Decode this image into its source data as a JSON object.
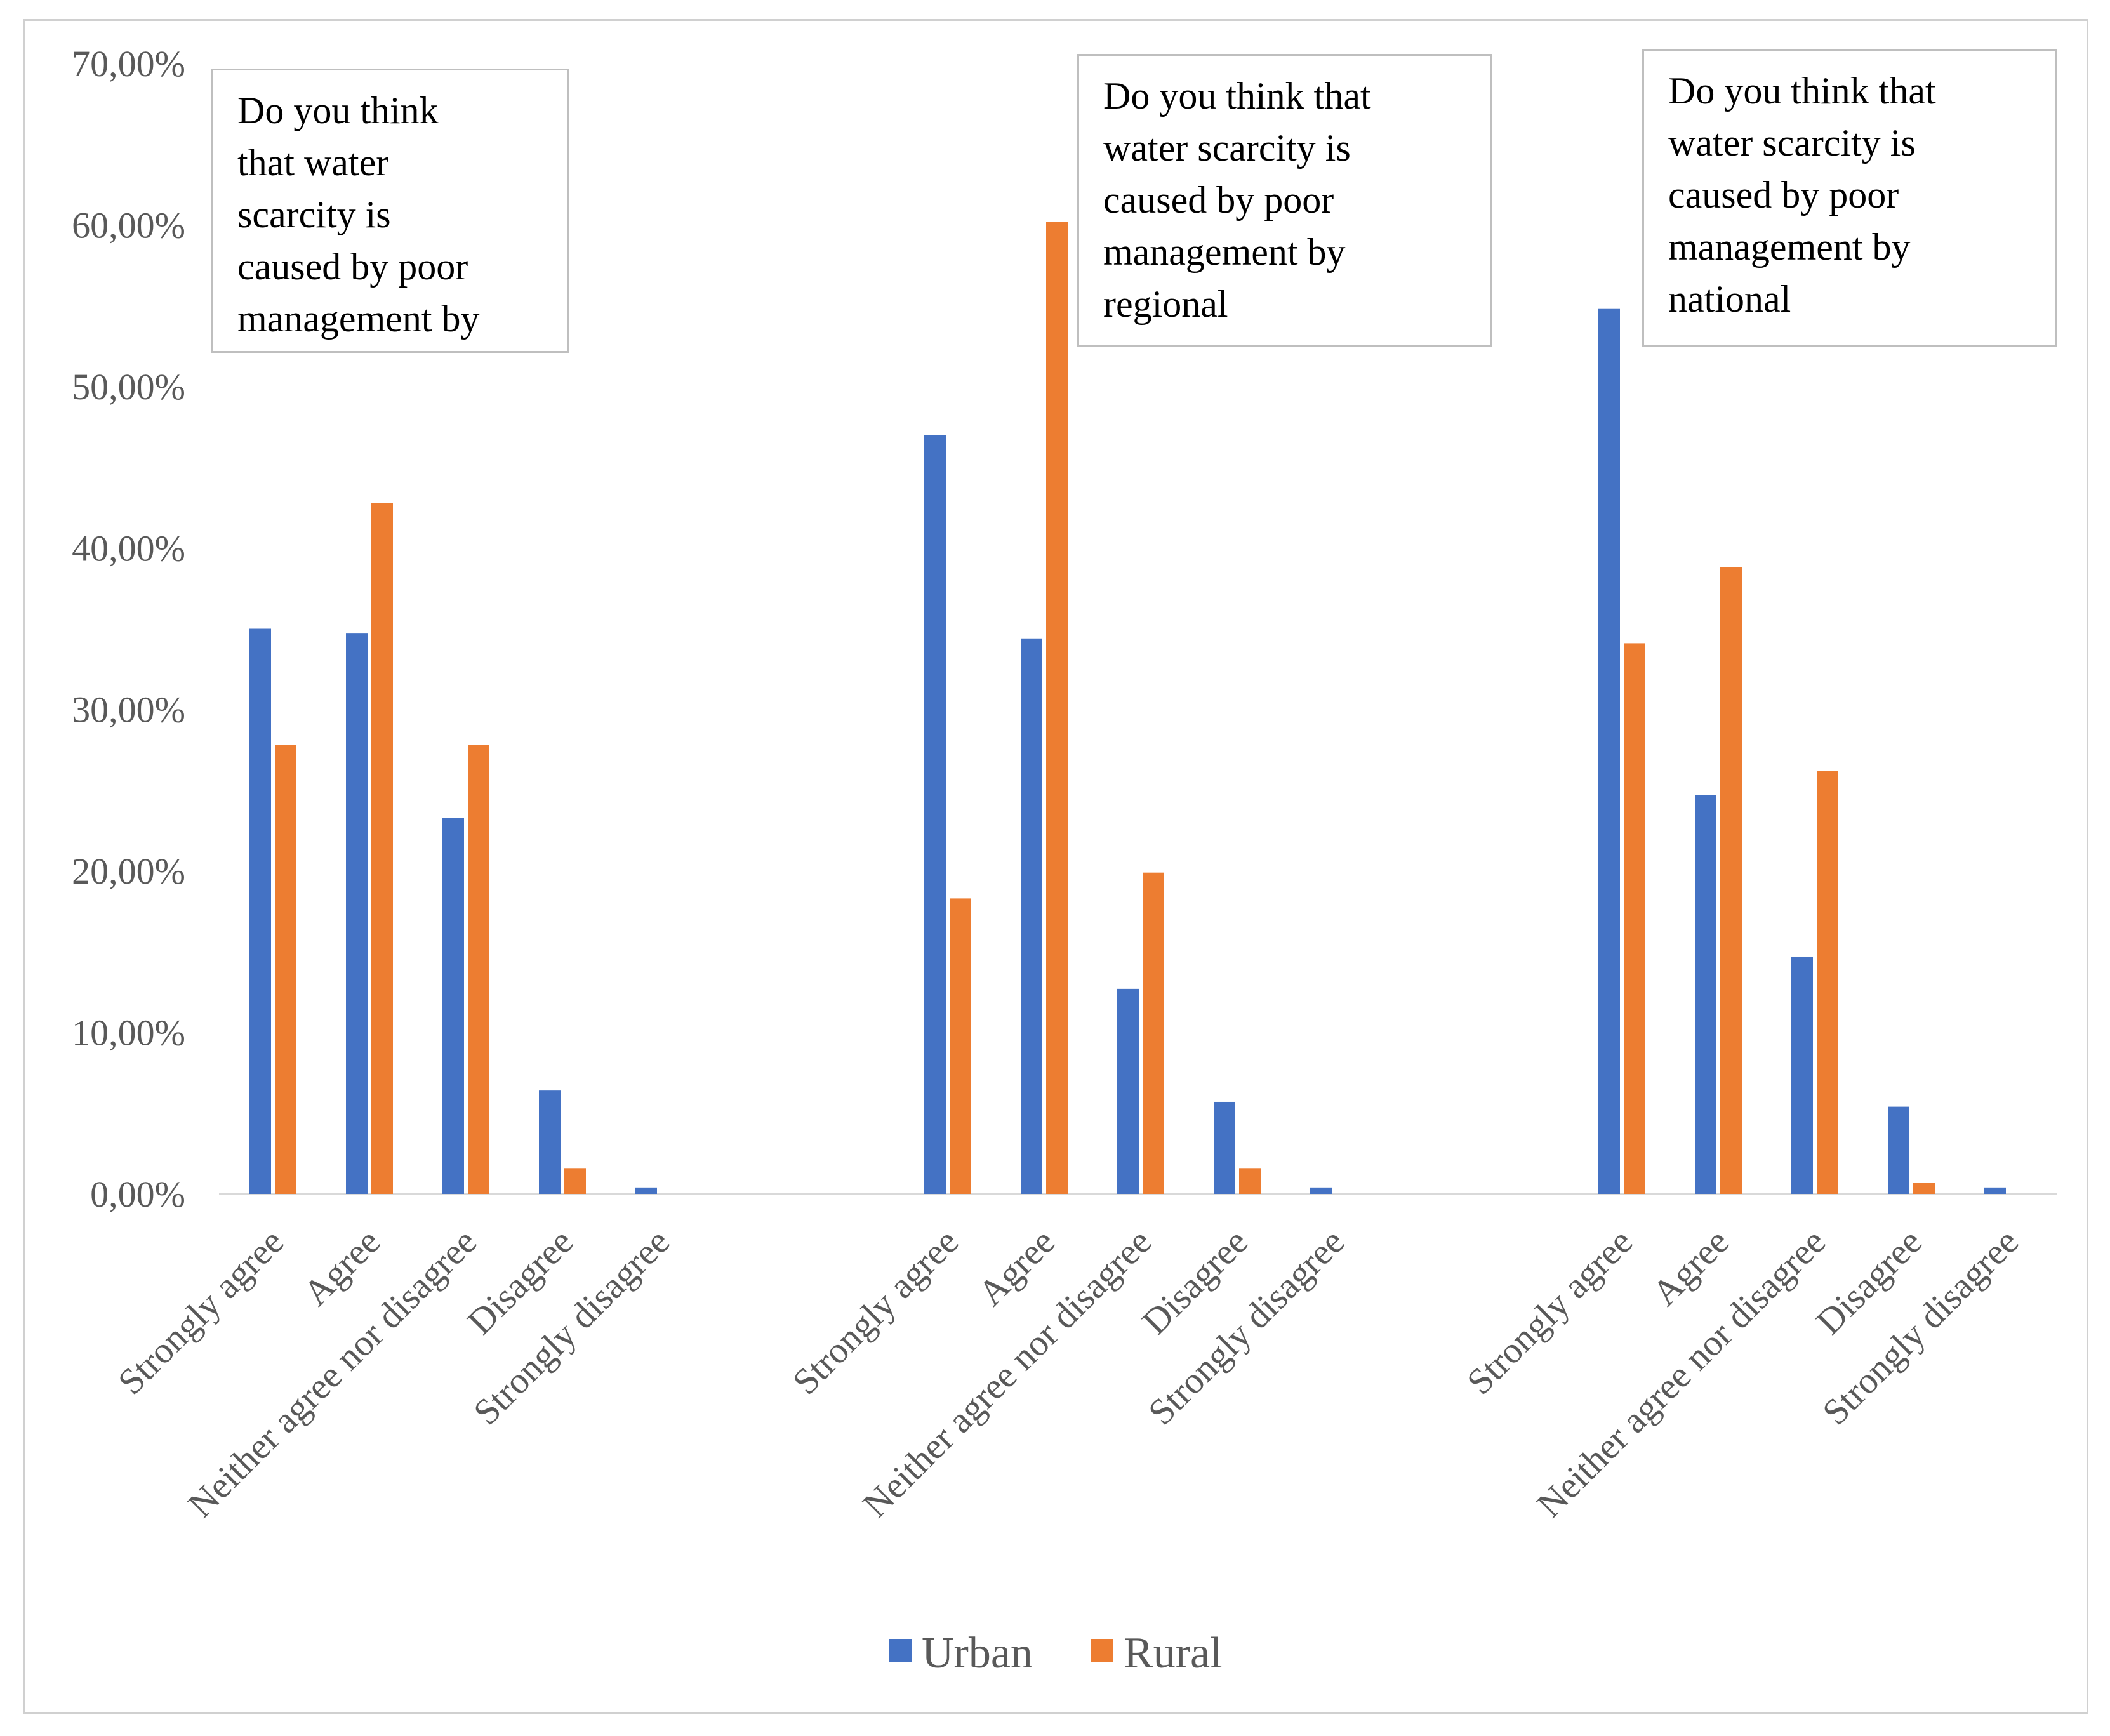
{
  "chart_data": {
    "type": "bar",
    "ylim": [
      0,
      70
    ],
    "y_ticks": [
      "0,00%",
      "10,00%",
      "20,00%",
      "30,00%",
      "40,00%",
      "50,00%",
      "60,00%",
      "70,00%"
    ],
    "y_tick_values": [
      0,
      10,
      20,
      30,
      40,
      50,
      60,
      70
    ],
    "legend": {
      "position": "bottom",
      "entries": [
        "Urban",
        "Rural"
      ]
    },
    "colors": {
      "Urban": "#4472C4",
      "Rural": "#ED7D31",
      "axis": "#d9d9d9"
    },
    "groups": [
      {
        "title": "Do you think\nthat water\nscarcity is\ncaused by poor\nmanagement  by",
        "categories": [
          "Strongly agree",
          "Agree",
          "Neither agree nor disagree",
          "Disagree",
          "Strongly disagree"
        ],
        "series": [
          {
            "name": "Urban",
            "values": [
              35.0,
              34.7,
              23.3,
              6.4,
              0.4
            ]
          },
          {
            "name": "Rural",
            "values": [
              27.8,
              42.8,
              27.8,
              1.6,
              0.0
            ]
          }
        ]
      },
      {
        "title": "Do you think  that\nwater scarcity is\ncaused by poor\nmanagement  by\nregional",
        "categories": [
          "Strongly agree",
          "Agree",
          "Neither agree nor disagree",
          "Disagree",
          "Strongly disagree"
        ],
        "series": [
          {
            "name": "Urban",
            "values": [
              47.0,
              34.4,
              12.7,
              5.7,
              0.4
            ]
          },
          {
            "name": "Rural",
            "values": [
              18.3,
              60.2,
              19.9,
              1.6,
              0.0
            ]
          }
        ]
      },
      {
        "title": "Do you think  that\nwater scarcity is\ncaused by poor\nmanagement  by\nnational",
        "categories": [
          "Strongly agree",
          "Agree",
          "Neither agree nor disagree",
          "Disagree",
          "Strongly disagree"
        ],
        "series": [
          {
            "name": "Urban",
            "values": [
              54.8,
              24.7,
              14.7,
              5.4,
              0.4
            ]
          },
          {
            "name": "Rural",
            "values": [
              34.1,
              38.8,
              26.2,
              0.7,
              0.0
            ]
          }
        ]
      }
    ]
  }
}
